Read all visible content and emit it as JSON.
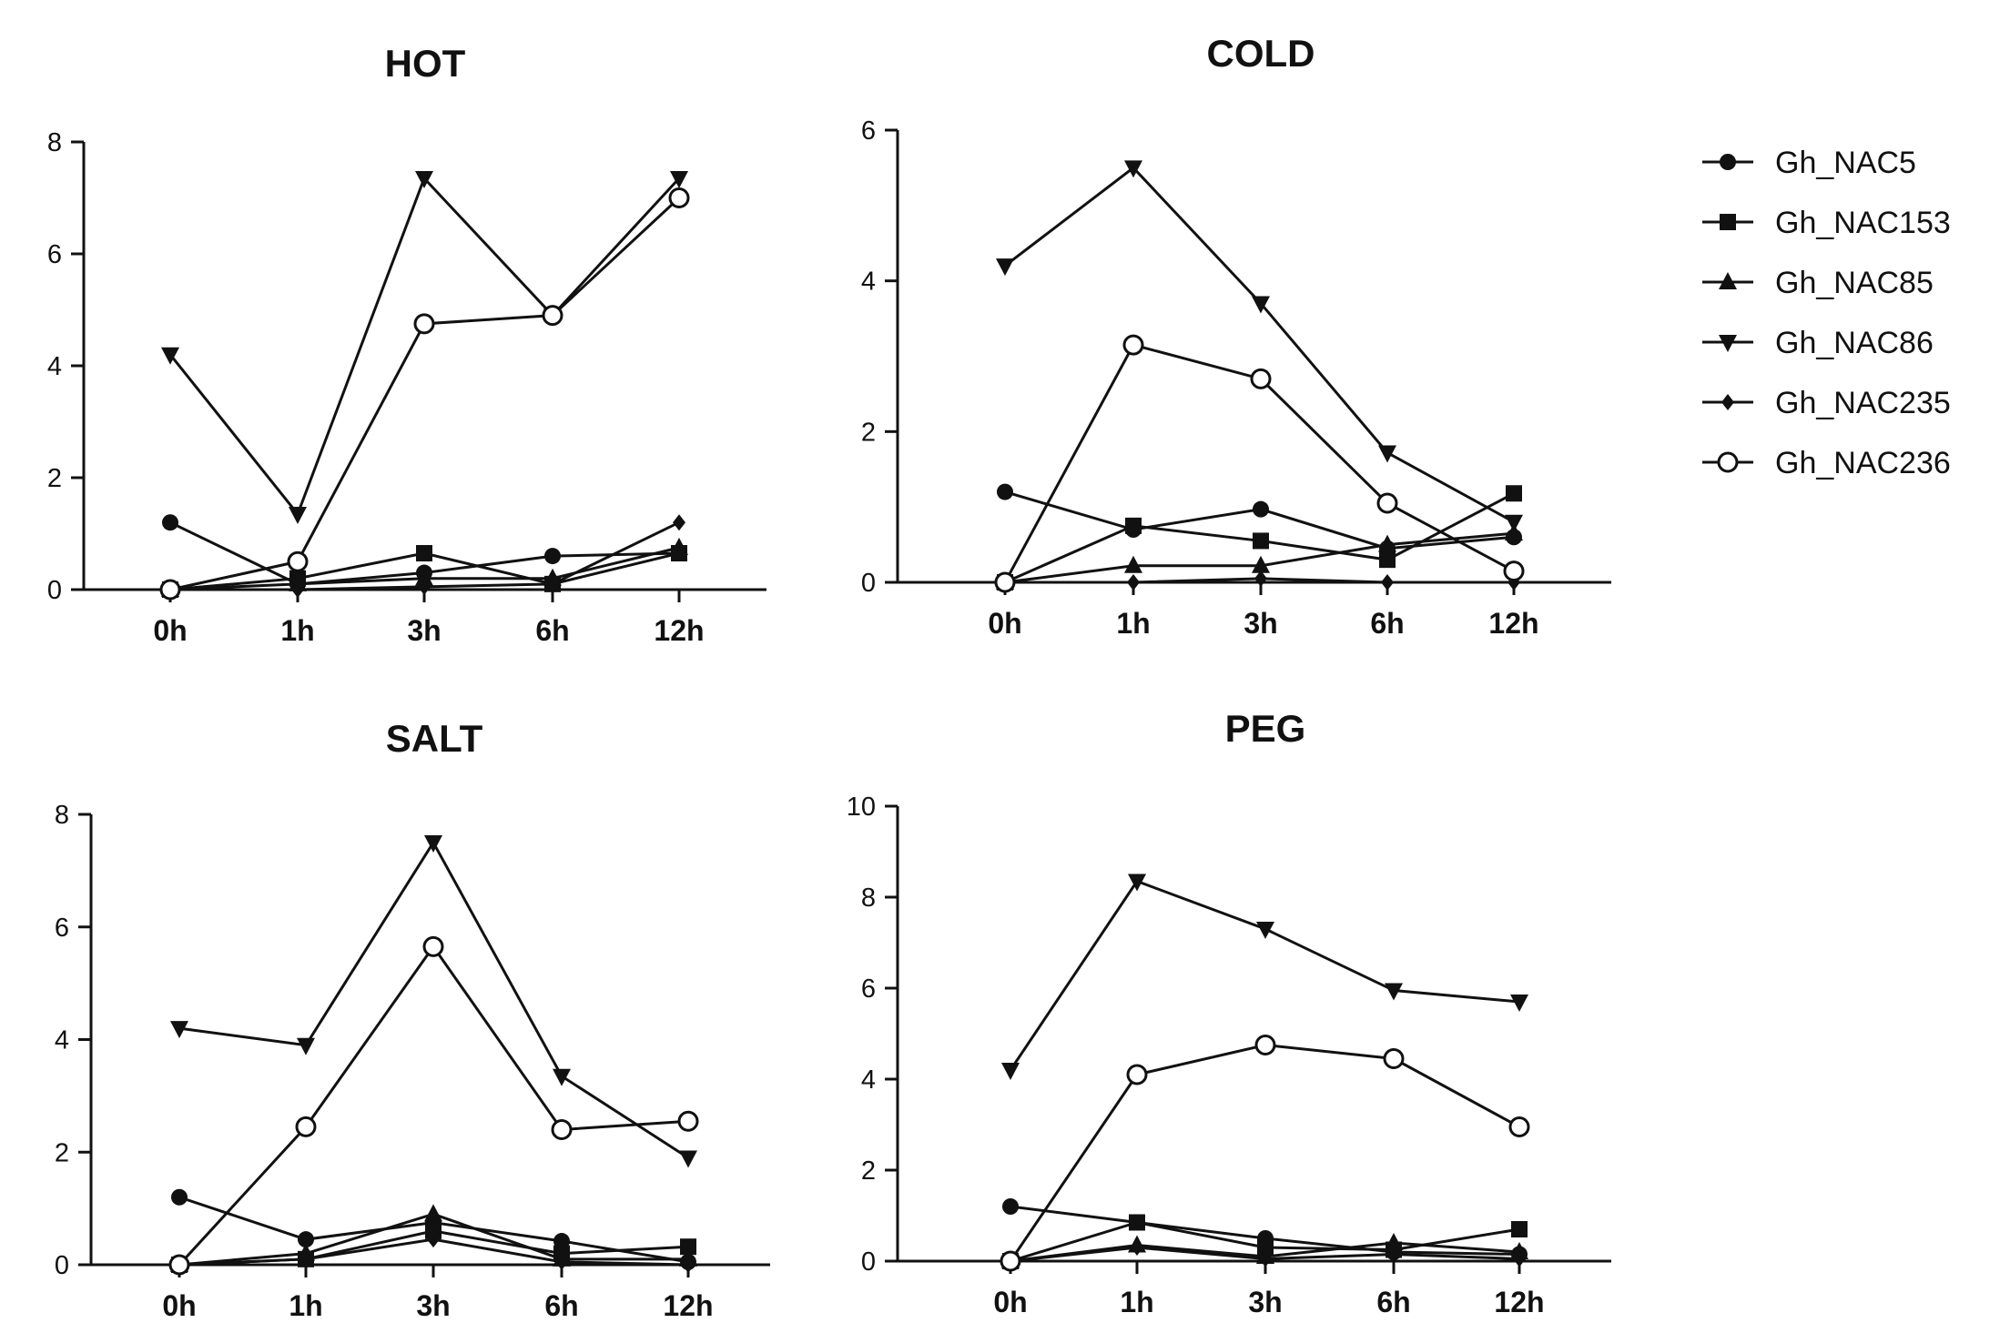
{
  "chart_data": [
    {
      "type": "line",
      "title": "HOT",
      "categories": [
        "0h",
        "1h",
        "3h",
        "6h",
        "12h"
      ],
      "ylim": [
        0,
        8
      ],
      "yticks": [
        0,
        2,
        4,
        6,
        8
      ],
      "series": [
        {
          "name": "Gh_NAC5",
          "values": [
            1.2,
            0.1,
            0.3,
            0.6,
            0.65
          ]
        },
        {
          "name": "Gh_NAC153",
          "values": [
            0.0,
            0.2,
            0.65,
            0.1,
            0.65
          ]
        },
        {
          "name": "Gh_NAC85",
          "values": [
            0.0,
            0.1,
            0.2,
            0.2,
            0.75
          ]
        },
        {
          "name": "Gh_NAC86",
          "values": [
            4.2,
            1.35,
            7.35,
            4.9,
            7.35
          ]
        },
        {
          "name": "Gh_NAC235",
          "values": [
            0.0,
            0.0,
            0.05,
            0.1,
            1.2
          ]
        },
        {
          "name": "Gh_NAC236",
          "values": [
            0.0,
            0.5,
            4.75,
            4.9,
            7.0
          ]
        }
      ]
    },
    {
      "type": "line",
      "title": "COLD",
      "categories": [
        "0h",
        "1h",
        "3h",
        "6h",
        "12h"
      ],
      "ylim": [
        0,
        6
      ],
      "yticks": [
        0,
        2,
        4,
        6
      ],
      "series": [
        {
          "name": "Gh_NAC5",
          "values": [
            1.2,
            0.7,
            0.97,
            0.45,
            0.6
          ]
        },
        {
          "name": "Gh_NAC153",
          "values": [
            0.0,
            0.75,
            0.55,
            0.3,
            1.18
          ]
        },
        {
          "name": "Gh_NAC85",
          "values": [
            0.0,
            0.22,
            0.22,
            0.5,
            0.65
          ]
        },
        {
          "name": "Gh_NAC86",
          "values": [
            4.2,
            5.5,
            3.7,
            1.72,
            0.8
          ]
        },
        {
          "name": "Gh_NAC235",
          "values": [
            0.0,
            0.0,
            0.05,
            0.0,
            0.0
          ]
        },
        {
          "name": "Gh_NAC236",
          "values": [
            0.0,
            3.15,
            2.7,
            1.05,
            0.15
          ]
        }
      ]
    },
    {
      "type": "line",
      "title": "SALT",
      "categories": [
        "0h",
        "1h",
        "3h",
        "6h",
        "12h"
      ],
      "ylim": [
        0,
        8
      ],
      "yticks": [
        0,
        2,
        4,
        6,
        8
      ],
      "series": [
        {
          "name": "Gh_NAC5",
          "values": [
            1.2,
            0.45,
            0.75,
            0.42,
            0.05
          ]
        },
        {
          "name": "Gh_NAC153",
          "values": [
            0.0,
            0.1,
            0.6,
            0.2,
            0.32
          ]
        },
        {
          "name": "Gh_NAC85",
          "values": [
            0.0,
            0.2,
            0.9,
            0.1,
            0.1
          ]
        },
        {
          "name": "Gh_NAC86",
          "values": [
            4.2,
            3.9,
            7.5,
            3.35,
            1.9
          ]
        },
        {
          "name": "Gh_NAC235",
          "values": [
            0.0,
            0.1,
            0.45,
            0.05,
            0.0
          ]
        },
        {
          "name": "Gh_NAC236",
          "values": [
            0.0,
            2.45,
            5.65,
            2.4,
            2.55
          ]
        }
      ]
    },
    {
      "type": "line",
      "title": "PEG",
      "categories": [
        "0h",
        "1h",
        "3h",
        "6h",
        "12h"
      ],
      "ylim": [
        0,
        10
      ],
      "yticks": [
        0,
        2,
        4,
        6,
        8,
        10
      ],
      "series": [
        {
          "name": "Gh_NAC5",
          "values": [
            1.2,
            0.85,
            0.5,
            0.2,
            0.15
          ]
        },
        {
          "name": "Gh_NAC153",
          "values": [
            0.0,
            0.85,
            0.3,
            0.25,
            0.7
          ]
        },
        {
          "name": "Gh_NAC85",
          "values": [
            0.0,
            0.35,
            0.1,
            0.4,
            0.2
          ]
        },
        {
          "name": "Gh_NAC86",
          "values": [
            4.2,
            8.35,
            7.3,
            5.95,
            5.7
          ]
        },
        {
          "name": "Gh_NAC235",
          "values": [
            0.0,
            0.3,
            0.05,
            0.15,
            0.05
          ]
        },
        {
          "name": "Gh_NAC236",
          "values": [
            0.0,
            4.1,
            4.75,
            4.45,
            2.95
          ]
        }
      ]
    }
  ],
  "legend": {
    "entries": [
      {
        "label": "Gh_NAC5",
        "marker": "circle-filled"
      },
      {
        "label": "Gh_NAC153",
        "marker": "square-filled"
      },
      {
        "label": "Gh_NAC85",
        "marker": "triangle-up-filled"
      },
      {
        "label": "Gh_NAC86",
        "marker": "triangle-down-filled"
      },
      {
        "label": "Gh_NAC235",
        "marker": "diamond-filled"
      },
      {
        "label": "Gh_NAC236",
        "marker": "circle-open"
      }
    ]
  },
  "colors": {
    "ink": "#111111",
    "background": "#ffffff"
  }
}
